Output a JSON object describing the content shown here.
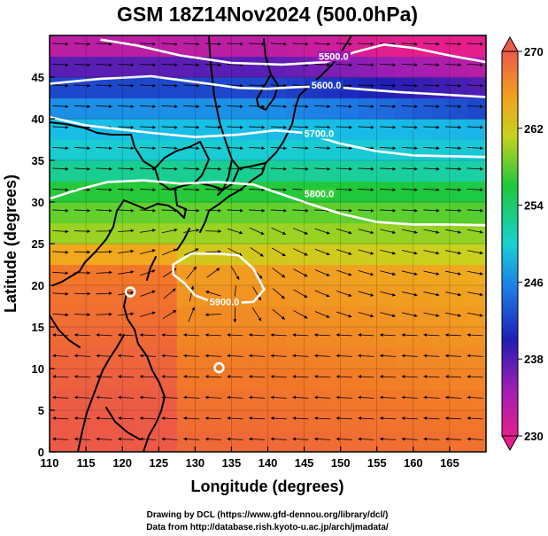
{
  "title": "GSM 18Z14Nov2024 (500.0hPa)",
  "xlabel": "Longitude (degrees)",
  "ylabel": "Latitude  (degrees)",
  "x_ticks": [
    "110",
    "115",
    "120",
    "125",
    "130",
    "135",
    "140",
    "145",
    "150",
    "155",
    "160",
    "165"
  ],
  "y_ticks": [
    "0",
    "5",
    "10",
    "15",
    "20",
    "25",
    "30",
    "35",
    "40",
    "45"
  ],
  "colorbar_ticks": [
    "270",
    "262",
    "254",
    "246",
    "238",
    "230"
  ],
  "contour_labels": [
    "5500.0",
    "5600.0",
    "5700.0",
    "5800.0",
    "5900.0"
  ],
  "credit_line1": "Drawing by DCL (https://www.gfd-dennou.org/library/dcl/)",
  "credit_line2": "Data from http://database.rish.kyoto-u.ac.jp/arch/jmadata/",
  "chart_data": {
    "type": "heatmap",
    "title": "GSM 18Z14Nov2024 (500.0hPa)",
    "xlabel": "Longitude (degrees)",
    "ylabel": "Latitude  (degrees)",
    "xlim": [
      110,
      170
    ],
    "ylim": [
      0,
      50
    ],
    "color_range": [
      230,
      270
    ],
    "colorbar_ticks": [
      270,
      262,
      254,
      246,
      238,
      230
    ],
    "contours": [
      {
        "label": "5500.0",
        "points": [
          [
            117,
            49.5
          ],
          [
            122,
            48.8
          ],
          [
            128,
            47.6
          ],
          [
            135,
            46.7
          ],
          [
            142,
            46.5
          ],
          [
            148,
            46.8
          ],
          [
            152,
            48.0
          ],
          [
            156,
            48.9
          ],
          [
            160,
            48.5
          ],
          [
            165,
            47.6
          ],
          [
            170,
            46.8
          ]
        ]
      },
      {
        "label": "5600.0",
        "points": [
          [
            110,
            44.2
          ],
          [
            117,
            44.8
          ],
          [
            124,
            45.1
          ],
          [
            130,
            44.4
          ],
          [
            136,
            43.7
          ],
          [
            140,
            43.6
          ],
          [
            144,
            43.8
          ],
          [
            148,
            43.9
          ],
          [
            152,
            43.6
          ],
          [
            158,
            43.2
          ],
          [
            164,
            42.9
          ],
          [
            170,
            42.6
          ]
        ]
      },
      {
        "label": "5700.0",
        "points": [
          [
            110,
            40.2
          ],
          [
            115,
            39.2
          ],
          [
            119,
            38.8
          ],
          [
            124,
            38.3
          ],
          [
            130,
            37.8
          ],
          [
            136,
            38.1
          ],
          [
            141,
            38.6
          ],
          [
            145,
            38.3
          ],
          [
            150,
            37.0
          ],
          [
            155,
            36.1
          ],
          [
            160,
            35.6
          ],
          [
            165,
            35.5
          ],
          [
            170,
            35.4
          ]
        ]
      },
      {
        "label": "5800.0",
        "points": [
          [
            110,
            30.4
          ],
          [
            114,
            31.5
          ],
          [
            118,
            32.4
          ],
          [
            123,
            32.6
          ],
          [
            128,
            32.2
          ],
          [
            133,
            32.4
          ],
          [
            138,
            32.1
          ],
          [
            142,
            30.9
          ],
          [
            146,
            29.7
          ],
          [
            150,
            28.6
          ],
          [
            155,
            27.6
          ],
          [
            160,
            27.3
          ],
          [
            165,
            27.3
          ],
          [
            170,
            27.2
          ]
        ]
      },
      {
        "label": "5900.0",
        "closed": true,
        "points": [
          [
            127,
            22.5
          ],
          [
            129.5,
            23.8
          ],
          [
            133,
            23.8
          ],
          [
            136,
            23.6
          ],
          [
            138,
            22.0
          ],
          [
            139.5,
            19.5
          ],
          [
            138,
            18.0
          ],
          [
            133,
            17.8
          ],
          [
            130,
            18.8
          ],
          [
            128.5,
            20.3
          ],
          [
            127,
            21.3
          ]
        ]
      }
    ],
    "closed_highs": [
      [
        121.1,
        19.2
      ],
      [
        133.3,
        10.1
      ]
    ],
    "grid": true,
    "colorbar": "right"
  }
}
